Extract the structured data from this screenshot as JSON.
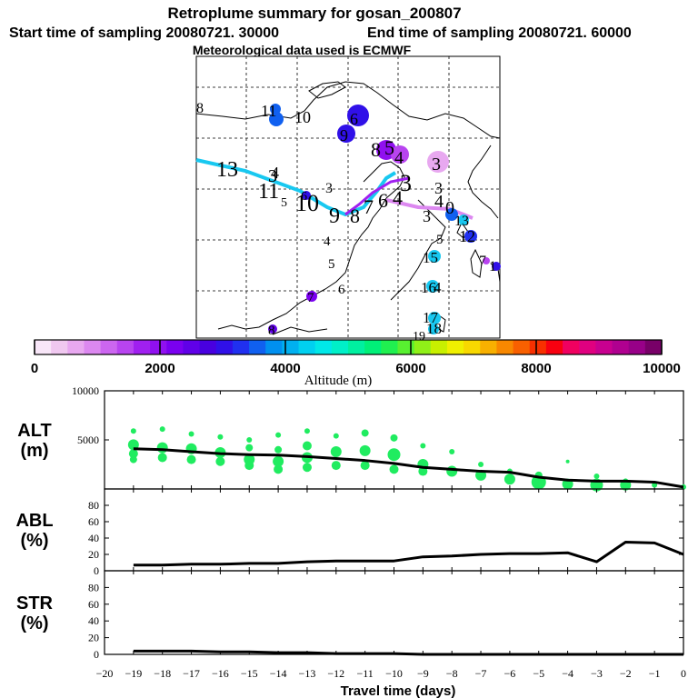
{
  "header": {
    "title": "Retroplume summary for gosan_200807",
    "start_label": "Start time of sampling 20080721. 30000",
    "end_label": "End time of sampling 20080721. 60000",
    "met_label": "Meteorological data used is ECMWF"
  },
  "colorbar": {
    "tick_labels": [
      "0",
      "2000",
      "4000",
      "6000",
      "8000",
      "10000"
    ],
    "title": "Altitude (m)",
    "range": [
      0,
      10000
    ],
    "colors": [
      "#f8e6f8",
      "#f0c8f0",
      "#e8a8f0",
      "#dc88f0",
      "#cc66f0",
      "#b844f0",
      "#a020f0",
      "#9010f0",
      "#7a00f0",
      "#6000e8",
      "#4800e0",
      "#3010e8",
      "#2030f0",
      "#1060f0",
      "#0090f0",
      "#00b0f0",
      "#00d0f0",
      "#00e8e8",
      "#00f0c8",
      "#00f0a0",
      "#00f078",
      "#20f050",
      "#58f030",
      "#90f018",
      "#c8f000",
      "#f0f000",
      "#f8d800",
      "#f8b000",
      "#f88800",
      "#f86000",
      "#f83000",
      "#f80010",
      "#f00060",
      "#e00080",
      "#c80090",
      "#b00090",
      "#980088",
      "#780068"
    ]
  },
  "map": {
    "track_labels": [
      "13",
      "12",
      "11",
      "10",
      "9",
      "8",
      "7",
      "6",
      "5",
      "4",
      "3",
      "2",
      "1",
      "0",
      "3",
      "4",
      "5",
      "6",
      "7",
      "8",
      "9",
      "10",
      "11",
      "12",
      "13",
      "14",
      "15",
      "16",
      "17",
      "18",
      "19",
      "8",
      "6",
      "4"
    ]
  },
  "chart_data": [
    {
      "type": "line",
      "panel": "ALT",
      "ylabel": "ALT",
      "yunit": "(m)",
      "ylim": [
        0,
        10000
      ],
      "yticks": [
        5000,
        10000
      ],
      "x": [
        -19,
        -18,
        -17,
        -16,
        -15,
        -14,
        -13,
        -12,
        -11,
        -10,
        -9,
        -8,
        -7,
        -6,
        -5,
        -4,
        -3,
        -2,
        -1,
        0
      ],
      "values": [
        4100,
        4000,
        3800,
        3600,
        3500,
        3450,
        3300,
        3100,
        2900,
        2600,
        2200,
        2000,
        1800,
        1700,
        1200,
        900,
        800,
        800,
        700,
        200
      ],
      "scatter_x": [
        -19,
        -19,
        -19,
        -19,
        -18,
        -18,
        -18,
        -17,
        -17,
        -17,
        -16,
        -16,
        -16,
        -15,
        -15,
        -15,
        -15,
        -14,
        -14,
        -14,
        -14,
        -13,
        -13,
        -13,
        -13,
        -12,
        -12,
        -12,
        -11,
        -11,
        -11,
        -10,
        -10,
        -10,
        -9,
        -9,
        -9,
        -8,
        -8,
        -7,
        -7,
        -6,
        -6,
        -5,
        -5,
        -4,
        -4,
        -3,
        -3,
        -2,
        -2,
        -1,
        0
      ],
      "scatter_y": [
        5900,
        4500,
        3600,
        3000,
        6100,
        4200,
        3200,
        5600,
        4100,
        3000,
        5300,
        3700,
        2800,
        5000,
        4200,
        3000,
        2400,
        5500,
        4000,
        2800,
        2000,
        5900,
        4400,
        3200,
        2200,
        5400,
        3800,
        2400,
        5700,
        3900,
        2400,
        5200,
        3500,
        2000,
        4400,
        2500,
        1800,
        3800,
        1800,
        2500,
        1400,
        1800,
        1000,
        1400,
        700,
        2800,
        500,
        1300,
        400,
        800,
        400,
        400,
        200
      ],
      "scatter_sizes": [
        3,
        6,
        5,
        4,
        3,
        6,
        5,
        3,
        6,
        5,
        3,
        6,
        5,
        3,
        4,
        6,
        5,
        3,
        4,
        6,
        5,
        3,
        5,
        6,
        5,
        3,
        6,
        5,
        4,
        6,
        5,
        4,
        7,
        5,
        3,
        6,
        5,
        3,
        6,
        3,
        6,
        3,
        6,
        4,
        8,
        2,
        6,
        3,
        7,
        3,
        6,
        3,
        3
      ],
      "series_color": "#000000",
      "scatter_color": "#20ec60"
    },
    {
      "type": "line",
      "panel": "ABL",
      "ylabel": "ABL",
      "yunit": "(%)",
      "ylim": [
        0,
        100
      ],
      "yticks": [
        0,
        20,
        40,
        60,
        80
      ],
      "x": [
        -19,
        -18,
        -17,
        -16,
        -15,
        -14,
        -13,
        -12,
        -11,
        -10,
        -9,
        -8,
        -7,
        -6,
        -5,
        -4,
        -3,
        -2,
        -1,
        0
      ],
      "values": [
        7,
        7,
        8,
        8,
        9,
        9,
        11,
        12,
        12,
        12,
        17,
        18,
        20,
        21,
        21,
        22,
        11,
        35,
        34,
        20
      ]
    },
    {
      "type": "line",
      "panel": "STR",
      "ylabel": "STR",
      "yunit": "(%)",
      "ylim": [
        0,
        100
      ],
      "yticks": [
        0,
        20,
        40,
        60,
        80
      ],
      "x": [
        -19,
        -18,
        -17,
        -16,
        -15,
        -14,
        -13,
        -12,
        -11,
        -10,
        -9,
        -8,
        -7,
        -6,
        -5,
        -4,
        -3,
        -2,
        -1,
        0
      ],
      "values": [
        4,
        4,
        4,
        3,
        3,
        2,
        2,
        1,
        1,
        1,
        0,
        0,
        0,
        0,
        0,
        0,
        0,
        0,
        0,
        0
      ]
    }
  ],
  "xaxis": {
    "label": "Travel time (days)",
    "range": [
      -20,
      0
    ],
    "tick_labels": [
      "−20",
      "−19",
      "−18",
      "−17",
      "−16",
      "−15",
      "−14",
      "−13",
      "−12",
      "−11",
      "−10",
      "−9",
      "−8",
      "−7",
      "−6",
      "−5",
      "−4",
      "−3",
      "−2",
      "−1",
      "0"
    ]
  }
}
